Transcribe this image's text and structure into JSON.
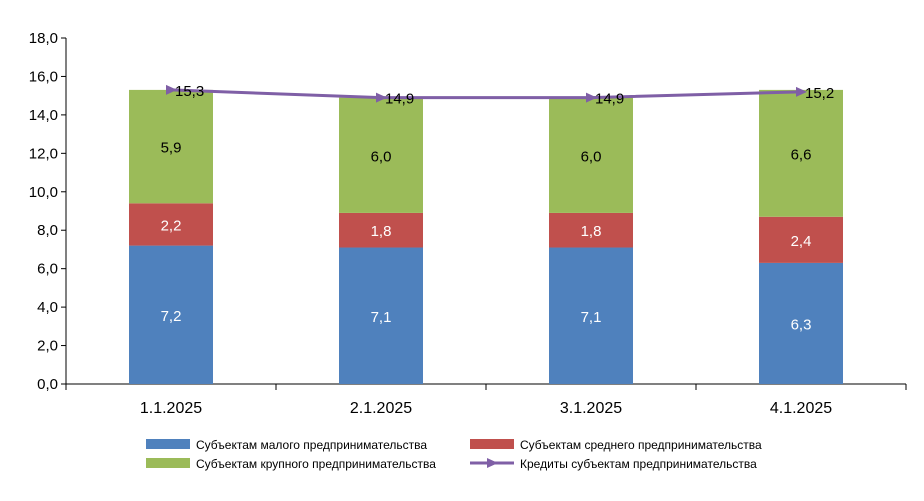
{
  "chart_data": {
    "type": "bar",
    "stacked": true,
    "categories": [
      "1.1.2025",
      "2.1.2025",
      "3.1.2025",
      "4.1.2025"
    ],
    "series": [
      {
        "name": "Субъектам малого предпринимательства",
        "kind": "bar",
        "color": "#4f81bd",
        "values": [
          7.2,
          7.1,
          7.1,
          6.3
        ],
        "labels": [
          "7,2",
          "7,1",
          "7,1",
          "6,3"
        ],
        "label_color": "#ffffff"
      },
      {
        "name": "Субъектам среднего предпринимательства",
        "kind": "bar",
        "color": "#c0504d",
        "values": [
          2.2,
          1.8,
          1.8,
          2.4
        ],
        "labels": [
          "2,2",
          "1,8",
          "1,8",
          "2,4"
        ],
        "label_color": "#ffffff"
      },
      {
        "name": "Субъектам крупного предпринимательства",
        "kind": "bar",
        "color": "#9bbb59",
        "values": [
          5.9,
          6.0,
          6.0,
          6.6
        ],
        "labels": [
          "5,9",
          "6,0",
          "6,0",
          "6,6"
        ],
        "label_color": "#000000"
      },
      {
        "name": "Кредиты субъектам предпринимательства",
        "kind": "line",
        "color": "#7f5fa6",
        "values": [
          15.3,
          14.9,
          14.9,
          15.2
        ],
        "labels": [
          "15,3",
          "14,9",
          "14,9",
          "15,2"
        ]
      }
    ],
    "ylim": [
      0,
      18
    ],
    "yticks": [
      0,
      2,
      4,
      6,
      8,
      10,
      12,
      14,
      16,
      18
    ],
    "ytick_labels": [
      "0,0",
      "2,0",
      "4,0",
      "6,0",
      "8,0",
      "10,0",
      "12,0",
      "14,0",
      "16,0",
      "18,0"
    ],
    "grid": false,
    "legend_position": "bottom"
  }
}
